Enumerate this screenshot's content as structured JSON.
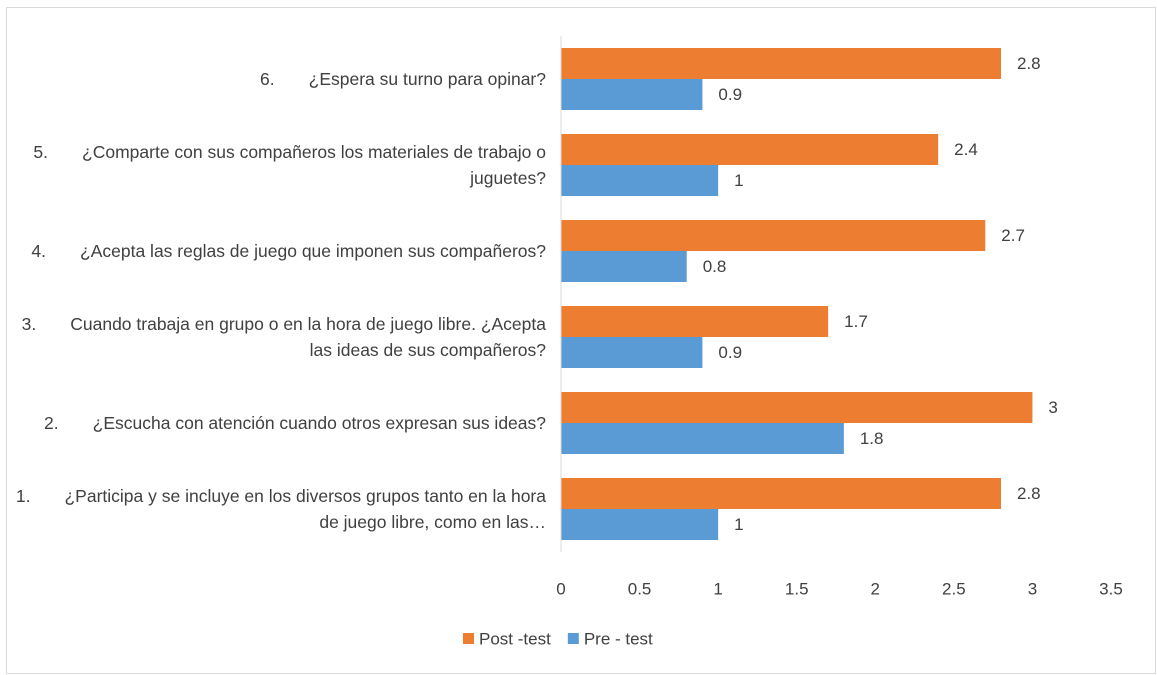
{
  "chart_data": {
    "type": "hbar",
    "categories": [
      "1.       ¿Participa y se incluye en los diversos grupos tanto en la hora de juego libre, como en las…",
      "2.       ¿Escucha con atención cuando otros expresan sus ideas?",
      "3.       Cuando trabaja en grupo o en la hora de juego libre. ¿Acepta las ideas de sus compañeros?",
      "4.       ¿Acepta las reglas de juego que imponen sus compañeros?",
      "5.       ¿Comparte con sus compañeros los materiales de trabajo o juguetes?",
      "6.       ¿Espera su turno para opinar?"
    ],
    "series": [
      {
        "name": "Post -test",
        "color": "#ED7D31",
        "values": [
          2.8,
          3,
          1.7,
          2.7,
          2.4,
          2.8
        ]
      },
      {
        "name": "Pre - test",
        "color": "#5B9BD5",
        "values": [
          1,
          1.8,
          0.9,
          0.8,
          1,
          0.9
        ]
      }
    ],
    "xlim": [
      0,
      3.5
    ],
    "xticks": [
      0,
      0.5,
      1,
      1.5,
      2,
      2.5,
      3,
      3.5
    ],
    "legend": "bottom"
  }
}
